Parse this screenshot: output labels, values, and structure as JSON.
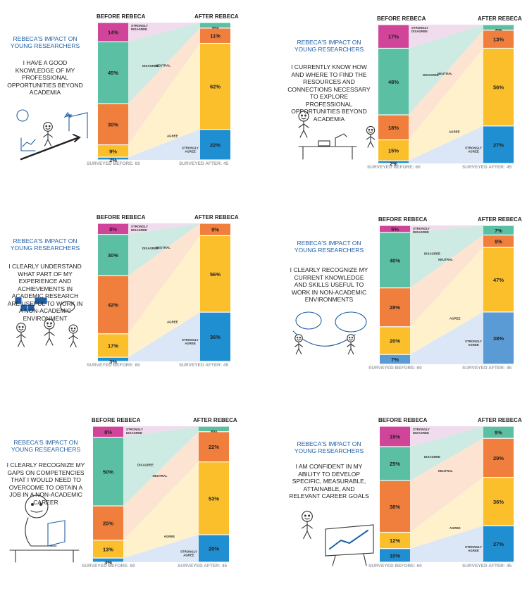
{
  "headings": {
    "before": "BEFORE REBECA",
    "after": "AFTER REBECA",
    "impact": "REBECA'S IMPACT ON YOUNG RESEARCHERS"
  },
  "legend": {
    "strongly_disagree": "STRONGLY DISAGREE",
    "disagree": "DISAGREE",
    "neutral": "NEUTRAL",
    "agree": "AGREE",
    "strongly_agree": "STRONGLY AGREE"
  },
  "colors": {
    "strongly_disagree": "#d0449a",
    "disagree": "#5bbfa4",
    "neutral": "#f07e3c",
    "agree": "#fbbf2c",
    "strongly_agree": "#1f8fd2",
    "strongly_agree_light": "#5b9bd5"
  },
  "chart_data": [
    {
      "type": "bar",
      "statement": "I HAVE A GOOD KNOWLEDGE OF MY PROFESSIONAL OPPORTUNITIES BEYOND ACADEMIA",
      "categories": [
        "STRONGLY DISAGREE",
        "DISAGREE",
        "NEUTRAL",
        "AGREE",
        "STRONGLY AGREE"
      ],
      "series": [
        {
          "name": "BEFORE REBECA",
          "values": [
            14,
            45,
            30,
            9,
            2
          ]
        },
        {
          "name": "AFTER REBECA",
          "values": [
            0,
            4,
            11,
            62,
            22
          ]
        }
      ],
      "surveyed_before": "SURVEYED BEFORE: 60",
      "surveyed_after": "SURVEYED AFTER: 45"
    },
    {
      "type": "bar",
      "statement": "I CURRENTLY KNOW HOW AND WHERE TO FIND THE RESOURCES AND CONNECTIONS NECESSARY TO EXPLORE PROFESSIONAL OPPORTUNITIES BEYOND ACADEMIA",
      "categories": [
        "STRONGLY DISAGREE",
        "DISAGREE",
        "NEUTRAL",
        "AGREE",
        "STRONGLY AGREE"
      ],
      "series": [
        {
          "name": "BEFORE REBECA",
          "values": [
            17,
            48,
            18,
            15,
            2
          ]
        },
        {
          "name": "AFTER REBECA",
          "values": [
            0,
            4,
            13,
            56,
            27
          ]
        }
      ],
      "surveyed_before": "SURVEYED BEFORE: 60",
      "surveyed_after": "SURVEYED AFTER: 45"
    },
    {
      "type": "bar",
      "statement": "I CLEARLY UNDERSTAND WHAT PART OF MY EXPERIENCE AND ACHIEVEMENTS IN ACADEMIC RESEARCH ARE USEFUL TO WORK IN A NON-ACADEMIC ENVIRONMENT",
      "categories": [
        "STRONGLY DISAGREE",
        "DISAGREE",
        "NEUTRAL",
        "AGREE",
        "STRONGLY AGREE"
      ],
      "series": [
        {
          "name": "BEFORE REBECA",
          "values": [
            8,
            30,
            42,
            17,
            3
          ]
        },
        {
          "name": "AFTER REBECA",
          "values": [
            0,
            0,
            9,
            56,
            36
          ]
        }
      ],
      "surveyed_before": "SURVEYED BEFORE: 60",
      "surveyed_after": "SURVEYED AFTER: 45"
    },
    {
      "type": "bar",
      "statement": "I CLEARLY RECOGNIZE MY CURRENT KNOWLEDGE AND SKILLS USEFUL TO WORK IN NON-ACADEMIC ENVIRONMENTS",
      "categories": [
        "STRONGLY DISAGREE",
        "DISAGREE",
        "NEUTRAL",
        "AGREE",
        "STRONGLY AGREE"
      ],
      "series": [
        {
          "name": "BEFORE REBECA",
          "values": [
            5,
            40,
            28,
            20,
            7
          ]
        },
        {
          "name": "AFTER REBECA",
          "values": [
            0,
            7,
            9,
            47,
            38
          ]
        }
      ],
      "surveyed_before": "SURVEYED BEFORE: 60",
      "surveyed_after": "SURVEYED AFTER: 45"
    },
    {
      "type": "bar",
      "statement": "I CLEARLY RECOGNIZE MY GAPS ON COMPETENCIES THAT I WOULD NEED TO OVERCOME TO OBTAIN A JOB IN A NON-ACADEMIC CAREER",
      "categories": [
        "STRONGLY DISAGREE",
        "DISAGREE",
        "NEUTRAL",
        "AGREE",
        "STRONGLY AGREE"
      ],
      "series": [
        {
          "name": "BEFORE REBECA",
          "values": [
            8,
            50,
            25,
            13,
            3
          ]
        },
        {
          "name": "AFTER REBECA",
          "values": [
            0,
            4,
            22,
            53,
            20
          ]
        }
      ],
      "surveyed_before": "SURVEYED BEFORE: 60",
      "surveyed_after": "SURVEYED AFTER: 45"
    },
    {
      "type": "bar",
      "statement": "I AM CONFIDENT IN MY ABILITY TO DEVELOP SPECIFIC, MEASURABLE, ATTAINABLE, AND RELEVANT CAREER GOALS",
      "categories": [
        "STRONGLY DISAGREE",
        "DISAGREE",
        "NEUTRAL",
        "AGREE",
        "STRONGLY AGREE"
      ],
      "series": [
        {
          "name": "BEFORE REBECA",
          "values": [
            15,
            25,
            38,
            12,
            10
          ]
        },
        {
          "name": "AFTER REBECA",
          "values": [
            0,
            9,
            29,
            36,
            27
          ]
        }
      ],
      "surveyed_before": "SURVEYED BEFORE: 60",
      "surveyed_after": "SURVEYED AFTER: 45"
    }
  ]
}
